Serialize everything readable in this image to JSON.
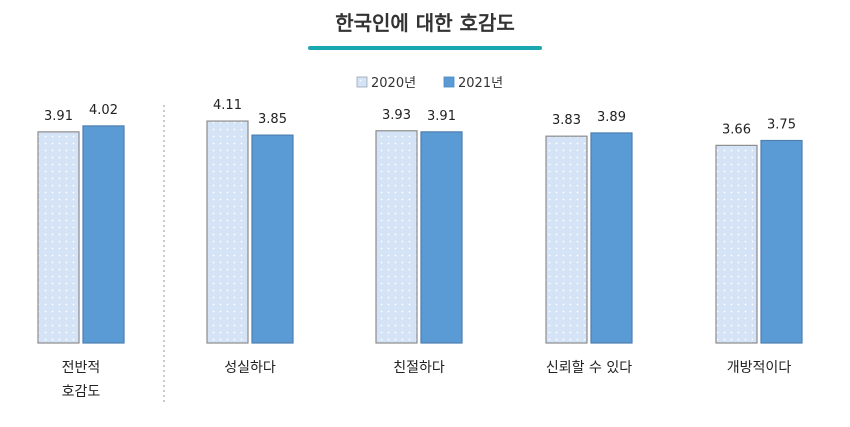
{
  "chart_data": {
    "type": "bar",
    "title": "한국인에 대한 호감도",
    "categories": [
      "전반적\n호감도",
      "성실하다",
      "친절하다",
      "신뢰할 수 있다",
      "개방적이다"
    ],
    "series": [
      {
        "name": "2020년",
        "values": [
          3.91,
          4.11,
          3.93,
          3.83,
          3.66
        ],
        "color": "#d5e3f6",
        "pattern": "dots"
      },
      {
        "name": "2021년",
        "values": [
          4.02,
          3.85,
          3.91,
          3.89,
          3.75
        ],
        "color": "#5b9bd5"
      }
    ],
    "value_labels": [
      [
        "3.91",
        "4.02"
      ],
      [
        "4.11",
        "3.85"
      ],
      [
        "3.93",
        "3.91"
      ],
      [
        "3.83",
        "3.89"
      ],
      [
        "3.66",
        "3.75"
      ]
    ],
    "legend_position": "top-center",
    "grid": false,
    "ylim": [
      0,
      4.5
    ],
    "separator_after_category": 0,
    "title_underline_color": "#1aa7b0"
  }
}
